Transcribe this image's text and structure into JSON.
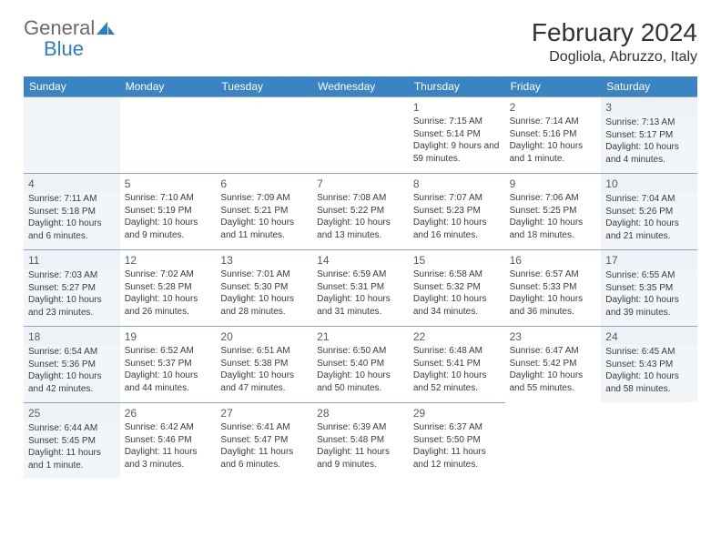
{
  "logo": {
    "general": "General",
    "blue": "Blue"
  },
  "title": "February 2024",
  "location": "Dogliola, Abruzzo, Italy",
  "colors": {
    "header_bg": "#3b84c4",
    "header_text": "#ffffff",
    "weekend_bg": "#f3f6f9",
    "cell_border": "#8aa7bf",
    "text": "#3a3a3a",
    "logo_gray": "#6a6a6a",
    "logo_blue": "#2d7fc1"
  },
  "typography": {
    "title_fontsize": 28,
    "location_fontsize": 16,
    "header_fontsize": 12,
    "daynum_fontsize": 12,
    "body_fontsize": 10
  },
  "weekdays": [
    "Sunday",
    "Monday",
    "Tuesday",
    "Wednesday",
    "Thursday",
    "Friday",
    "Saturday"
  ],
  "leading_blanks": 4,
  "days": [
    {
      "n": "1",
      "sunrise": "Sunrise: 7:15 AM",
      "sunset": "Sunset: 5:14 PM",
      "daylight": "Daylight: 9 hours and 59 minutes."
    },
    {
      "n": "2",
      "sunrise": "Sunrise: 7:14 AM",
      "sunset": "Sunset: 5:16 PM",
      "daylight": "Daylight: 10 hours and 1 minute."
    },
    {
      "n": "3",
      "sunrise": "Sunrise: 7:13 AM",
      "sunset": "Sunset: 5:17 PM",
      "daylight": "Daylight: 10 hours and 4 minutes."
    },
    {
      "n": "4",
      "sunrise": "Sunrise: 7:11 AM",
      "sunset": "Sunset: 5:18 PM",
      "daylight": "Daylight: 10 hours and 6 minutes."
    },
    {
      "n": "5",
      "sunrise": "Sunrise: 7:10 AM",
      "sunset": "Sunset: 5:19 PM",
      "daylight": "Daylight: 10 hours and 9 minutes."
    },
    {
      "n": "6",
      "sunrise": "Sunrise: 7:09 AM",
      "sunset": "Sunset: 5:21 PM",
      "daylight": "Daylight: 10 hours and 11 minutes."
    },
    {
      "n": "7",
      "sunrise": "Sunrise: 7:08 AM",
      "sunset": "Sunset: 5:22 PM",
      "daylight": "Daylight: 10 hours and 13 minutes."
    },
    {
      "n": "8",
      "sunrise": "Sunrise: 7:07 AM",
      "sunset": "Sunset: 5:23 PM",
      "daylight": "Daylight: 10 hours and 16 minutes."
    },
    {
      "n": "9",
      "sunrise": "Sunrise: 7:06 AM",
      "sunset": "Sunset: 5:25 PM",
      "daylight": "Daylight: 10 hours and 18 minutes."
    },
    {
      "n": "10",
      "sunrise": "Sunrise: 7:04 AM",
      "sunset": "Sunset: 5:26 PM",
      "daylight": "Daylight: 10 hours and 21 minutes."
    },
    {
      "n": "11",
      "sunrise": "Sunrise: 7:03 AM",
      "sunset": "Sunset: 5:27 PM",
      "daylight": "Daylight: 10 hours and 23 minutes."
    },
    {
      "n": "12",
      "sunrise": "Sunrise: 7:02 AM",
      "sunset": "Sunset: 5:28 PM",
      "daylight": "Daylight: 10 hours and 26 minutes."
    },
    {
      "n": "13",
      "sunrise": "Sunrise: 7:01 AM",
      "sunset": "Sunset: 5:30 PM",
      "daylight": "Daylight: 10 hours and 28 minutes."
    },
    {
      "n": "14",
      "sunrise": "Sunrise: 6:59 AM",
      "sunset": "Sunset: 5:31 PM",
      "daylight": "Daylight: 10 hours and 31 minutes."
    },
    {
      "n": "15",
      "sunrise": "Sunrise: 6:58 AM",
      "sunset": "Sunset: 5:32 PM",
      "daylight": "Daylight: 10 hours and 34 minutes."
    },
    {
      "n": "16",
      "sunrise": "Sunrise: 6:57 AM",
      "sunset": "Sunset: 5:33 PM",
      "daylight": "Daylight: 10 hours and 36 minutes."
    },
    {
      "n": "17",
      "sunrise": "Sunrise: 6:55 AM",
      "sunset": "Sunset: 5:35 PM",
      "daylight": "Daylight: 10 hours and 39 minutes."
    },
    {
      "n": "18",
      "sunrise": "Sunrise: 6:54 AM",
      "sunset": "Sunset: 5:36 PM",
      "daylight": "Daylight: 10 hours and 42 minutes."
    },
    {
      "n": "19",
      "sunrise": "Sunrise: 6:52 AM",
      "sunset": "Sunset: 5:37 PM",
      "daylight": "Daylight: 10 hours and 44 minutes."
    },
    {
      "n": "20",
      "sunrise": "Sunrise: 6:51 AM",
      "sunset": "Sunset: 5:38 PM",
      "daylight": "Daylight: 10 hours and 47 minutes."
    },
    {
      "n": "21",
      "sunrise": "Sunrise: 6:50 AM",
      "sunset": "Sunset: 5:40 PM",
      "daylight": "Daylight: 10 hours and 50 minutes."
    },
    {
      "n": "22",
      "sunrise": "Sunrise: 6:48 AM",
      "sunset": "Sunset: 5:41 PM",
      "daylight": "Daylight: 10 hours and 52 minutes."
    },
    {
      "n": "23",
      "sunrise": "Sunrise: 6:47 AM",
      "sunset": "Sunset: 5:42 PM",
      "daylight": "Daylight: 10 hours and 55 minutes."
    },
    {
      "n": "24",
      "sunrise": "Sunrise: 6:45 AM",
      "sunset": "Sunset: 5:43 PM",
      "daylight": "Daylight: 10 hours and 58 minutes."
    },
    {
      "n": "25",
      "sunrise": "Sunrise: 6:44 AM",
      "sunset": "Sunset: 5:45 PM",
      "daylight": "Daylight: 11 hours and 1 minute."
    },
    {
      "n": "26",
      "sunrise": "Sunrise: 6:42 AM",
      "sunset": "Sunset: 5:46 PM",
      "daylight": "Daylight: 11 hours and 3 minutes."
    },
    {
      "n": "27",
      "sunrise": "Sunrise: 6:41 AM",
      "sunset": "Sunset: 5:47 PM",
      "daylight": "Daylight: 11 hours and 6 minutes."
    },
    {
      "n": "28",
      "sunrise": "Sunrise: 6:39 AM",
      "sunset": "Sunset: 5:48 PM",
      "daylight": "Daylight: 11 hours and 9 minutes."
    },
    {
      "n": "29",
      "sunrise": "Sunrise: 6:37 AM",
      "sunset": "Sunset: 5:50 PM",
      "daylight": "Daylight: 11 hours and 12 minutes."
    }
  ]
}
